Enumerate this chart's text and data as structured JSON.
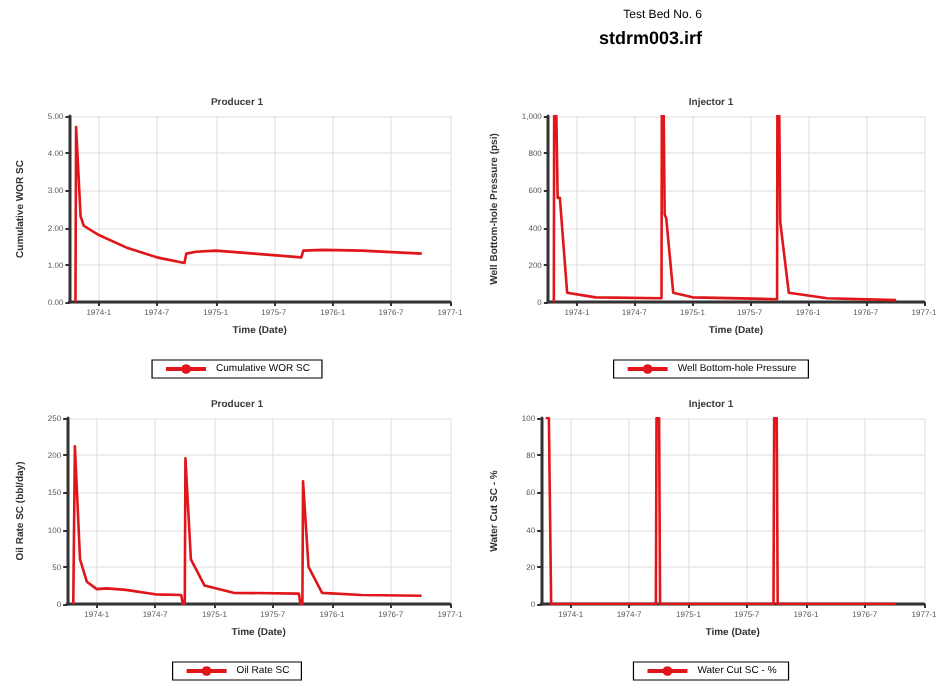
{
  "chart_data": [
    {
      "type": "line",
      "title": "Producer 1",
      "annotations": [
        "Test Bed No. 6",
        "stdrm003.irf"
      ],
      "xlabel": "Time (Date)",
      "ylabel": "Cumulative WOR SC",
      "xlim": [
        "1973-10",
        "1977-01"
      ],
      "xticks": [
        {
          "value": "1974-01",
          "label": "1974-1"
        },
        {
          "value": "1974-07",
          "label": "1974-7"
        },
        {
          "value": "1975-01",
          "label": "1975-1"
        },
        {
          "value": "1975-07",
          "label": "1975-7"
        },
        {
          "value": "1976-01",
          "label": "1976-1"
        },
        {
          "value": "1976-07",
          "label": "1976-7"
        },
        {
          "value": "1977-01",
          "label": "1977-1"
        }
      ],
      "ylim": [
        0,
        5
      ],
      "yticks": [
        {
          "value": 0,
          "label": "0.00"
        },
        {
          "value": 1,
          "label": "1.00"
        },
        {
          "value": 2,
          "label": "2.00"
        },
        {
          "value": 3,
          "label": "3.00"
        },
        {
          "value": 4,
          "label": "4.00"
        },
        {
          "value": 5,
          "label": "5.00"
        }
      ],
      "grid": true,
      "legend": "bottom",
      "marker": "none",
      "line_style": "solid",
      "series": [
        {
          "name": "Cumulative WOR SC",
          "color": "#e0161b",
          "x": [
            "1973-10-20",
            "1973-10-22",
            "1973-11-05",
            "1973-11-15",
            "1974-01-01",
            "1974-04-01",
            "1974-07-01",
            "1974-09-25",
            "1974-10-01",
            "1974-11-01",
            "1975-01-01",
            "1975-05-01",
            "1975-09-25",
            "1975-10-01",
            "1975-12-01",
            "1976-04-01",
            "1976-10-05"
          ],
          "values": [
            0,
            4.7,
            2.3,
            2.05,
            1.8,
            1.45,
            1.2,
            1.05,
            1.3,
            1.35,
            1.38,
            1.3,
            1.2,
            1.38,
            1.4,
            1.38,
            1.3
          ]
        }
      ]
    },
    {
      "type": "line",
      "title": "Injector 1",
      "xlabel": "Time (Date)",
      "ylabel": "Well Bottom-hole Pressure (psi)",
      "xlim": [
        "1973-10",
        "1977-01"
      ],
      "xticks": [
        {
          "value": "1974-01",
          "label": "1974-1"
        },
        {
          "value": "1974-07",
          "label": "1974-7"
        },
        {
          "value": "1975-01",
          "label": "1975-1"
        },
        {
          "value": "1975-07",
          "label": "1975-7"
        },
        {
          "value": "1976-01",
          "label": "1976-1"
        },
        {
          "value": "1976-07",
          "label": "1976-7"
        },
        {
          "value": "1977-01",
          "label": "1977-1"
        }
      ],
      "ylim": [
        0,
        1000
      ],
      "yticks": [
        0,
        200,
        400,
        600,
        800,
        {
          "value": 1000,
          "label": "1,000"
        }
      ],
      "grid": true,
      "legend": "bottom",
      "marker": "none",
      "line_style": "solid",
      "series": [
        {
          "name": "Well Bottom-hole Pressure",
          "color": "#e0161b",
          "x": [
            "1973-10-20",
            "1973-10-21",
            "1973-10-28",
            "1973-11-01",
            "1973-11-08",
            "1973-12-01",
            "1974-03-01",
            "1974-09-25",
            "1974-09-26",
            "1974-10-02",
            "1974-10-05",
            "1974-10-10",
            "1974-11-01",
            "1975-01-01",
            "1975-09-25",
            "1975-09-26",
            "1975-10-02",
            "1975-10-05",
            "1975-11-01",
            "1976-03-01",
            "1976-10-05"
          ],
          "values": [
            0,
            1000,
            1000,
            560,
            560,
            50,
            25,
            20,
            1000,
            1000,
            470,
            450,
            50,
            25,
            15,
            1000,
            1000,
            430,
            50,
            20,
            10
          ]
        }
      ]
    },
    {
      "type": "line",
      "title": "Producer 1",
      "xlabel": "Time (Date)",
      "ylabel": "Oil Rate SC (bbl/day)",
      "xlim": [
        "1973-10",
        "1977-01"
      ],
      "xticks": [
        {
          "value": "1974-01",
          "label": "1974-1"
        },
        {
          "value": "1974-07",
          "label": "1974-7"
        },
        {
          "value": "1975-01",
          "label": "1975-1"
        },
        {
          "value": "1975-07",
          "label": "1975-7"
        },
        {
          "value": "1976-01",
          "label": "1976-1"
        },
        {
          "value": "1976-07",
          "label": "1976-7"
        },
        {
          "value": "1977-01",
          "label": "1977-1"
        }
      ],
      "ylim": [
        0,
        250
      ],
      "yticks": [
        0,
        50,
        100,
        150,
        200,
        250
      ],
      "grid": true,
      "legend": "bottom",
      "marker": "none",
      "line_style": "solid",
      "series": [
        {
          "name": "Oil Rate SC",
          "color": "#e0161b",
          "x": [
            "1973-10-20",
            "1973-10-25",
            "1973-11-10",
            "1973-12-01",
            "1974-01-01",
            "1974-02-01",
            "1974-04-01",
            "1974-07-01",
            "1974-09-20",
            "1974-09-25",
            "1974-10-01",
            "1974-10-03",
            "1974-10-20",
            "1974-12-01",
            "1975-03-01",
            "1975-09-20",
            "1975-09-25",
            "1975-10-01",
            "1975-10-03",
            "1975-10-20",
            "1975-12-01",
            "1976-04-01",
            "1976-10-05"
          ],
          "values": [
            0,
            212,
            60,
            30,
            20,
            21,
            19,
            13,
            12,
            0,
            0,
            196,
            60,
            25,
            15,
            14,
            0,
            0,
            165,
            50,
            15,
            12,
            11
          ]
        }
      ]
    },
    {
      "type": "line",
      "title": "Injector 1",
      "xlabel": "Time (Date)",
      "ylabel": "Water Cut SC - %",
      "xlim": [
        "1973-10",
        "1977-01"
      ],
      "xticks": [
        {
          "value": "1974-01",
          "label": "1974-1"
        },
        {
          "value": "1974-07",
          "label": "1974-7"
        },
        {
          "value": "1975-01",
          "label": "1975-1"
        },
        {
          "value": "1975-07",
          "label": "1975-7"
        },
        {
          "value": "1976-01",
          "label": "1976-1"
        },
        {
          "value": "1976-07",
          "label": "1976-7"
        },
        {
          "value": "1977-01",
          "label": "1977-1"
        }
      ],
      "ylim": [
        0,
        100
      ],
      "yticks": [
        0,
        20,
        40,
        60,
        80,
        100
      ],
      "grid": true,
      "legend": "bottom",
      "marker": "none",
      "line_style": "solid",
      "series": [
        {
          "name": "Water Cut SC - %",
          "color": "#e0161b",
          "x": [
            "1973-10-15",
            "1973-10-25",
            "1973-11-01",
            "1974-09-22",
            "1974-09-24",
            "1974-10-02",
            "1974-10-05",
            "1975-09-22",
            "1975-09-24",
            "1975-10-02",
            "1975-10-05",
            "1976-10-05"
          ],
          "values": [
            100,
            100,
            0,
            0,
            100,
            100,
            0,
            0,
            100,
            100,
            0,
            0
          ]
        }
      ]
    }
  ]
}
